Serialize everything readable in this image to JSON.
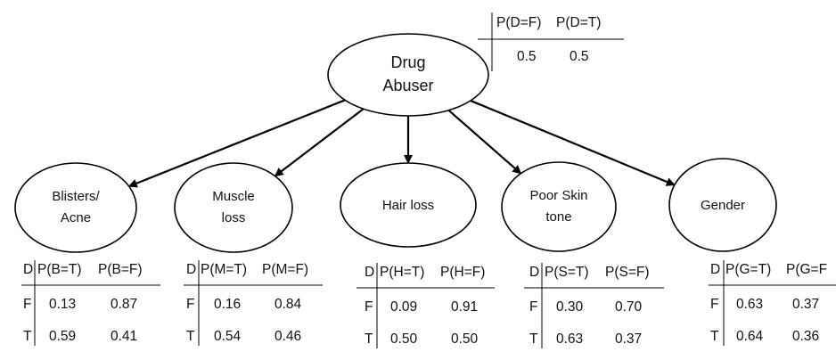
{
  "root": {
    "label_lines": [
      "Drug",
      "Abuser"
    ],
    "cpt": {
      "headers": [
        "P(D=F)",
        "P(D=T)"
      ],
      "values": [
        "0.5",
        "0.5"
      ]
    }
  },
  "children": [
    {
      "key": "blisters-acne",
      "label_lines": [
        "Blisters/",
        "Acne"
      ],
      "cpt": {
        "parent": "D",
        "headers": [
          "P(B=T)",
          "P(B=F)"
        ],
        "rows": [
          {
            "d": "F",
            "v": [
              "0.13",
              "0.87"
            ]
          },
          {
            "d": "T",
            "v": [
              "0.59",
              "0.41"
            ]
          }
        ]
      }
    },
    {
      "key": "muscle-loss",
      "label_lines": [
        "Muscle",
        "loss"
      ],
      "cpt": {
        "parent": "D",
        "headers": [
          "P(M=T)",
          "P(M=F)"
        ],
        "rows": [
          {
            "d": "F",
            "v": [
              "0.16",
              "0.84"
            ]
          },
          {
            "d": "T",
            "v": [
              "0.54",
              "0.46"
            ]
          }
        ]
      }
    },
    {
      "key": "hair-loss",
      "label_lines": [
        "Hair loss"
      ],
      "cpt": {
        "parent": "D",
        "headers": [
          "P(H=T)",
          "P(H=F)"
        ],
        "rows": [
          {
            "d": "F",
            "v": [
              "0.09",
              "0.91"
            ]
          },
          {
            "d": "T",
            "v": [
              "0.50",
              "0.50"
            ]
          }
        ]
      }
    },
    {
      "key": "poor-skin-tone",
      "label_lines": [
        "Poor Skin",
        "tone"
      ],
      "cpt": {
        "parent": "D",
        "headers": [
          "P(S=T)",
          "P(S=F)"
        ],
        "rows": [
          {
            "d": "F",
            "v": [
              "0.30",
              "0.70"
            ]
          },
          {
            "d": "T",
            "v": [
              "0.63",
              "0.37"
            ]
          }
        ]
      }
    },
    {
      "key": "gender",
      "label_lines": [
        "Gender"
      ],
      "cpt": {
        "parent": "D",
        "headers": [
          "P(G=T)",
          "P(G=F"
        ],
        "rows": [
          {
            "d": "F",
            "v": [
              "0.63",
              "0.37"
            ]
          },
          {
            "d": "T",
            "v": [
              "0.64",
              "0.36"
            ]
          }
        ]
      }
    }
  ]
}
